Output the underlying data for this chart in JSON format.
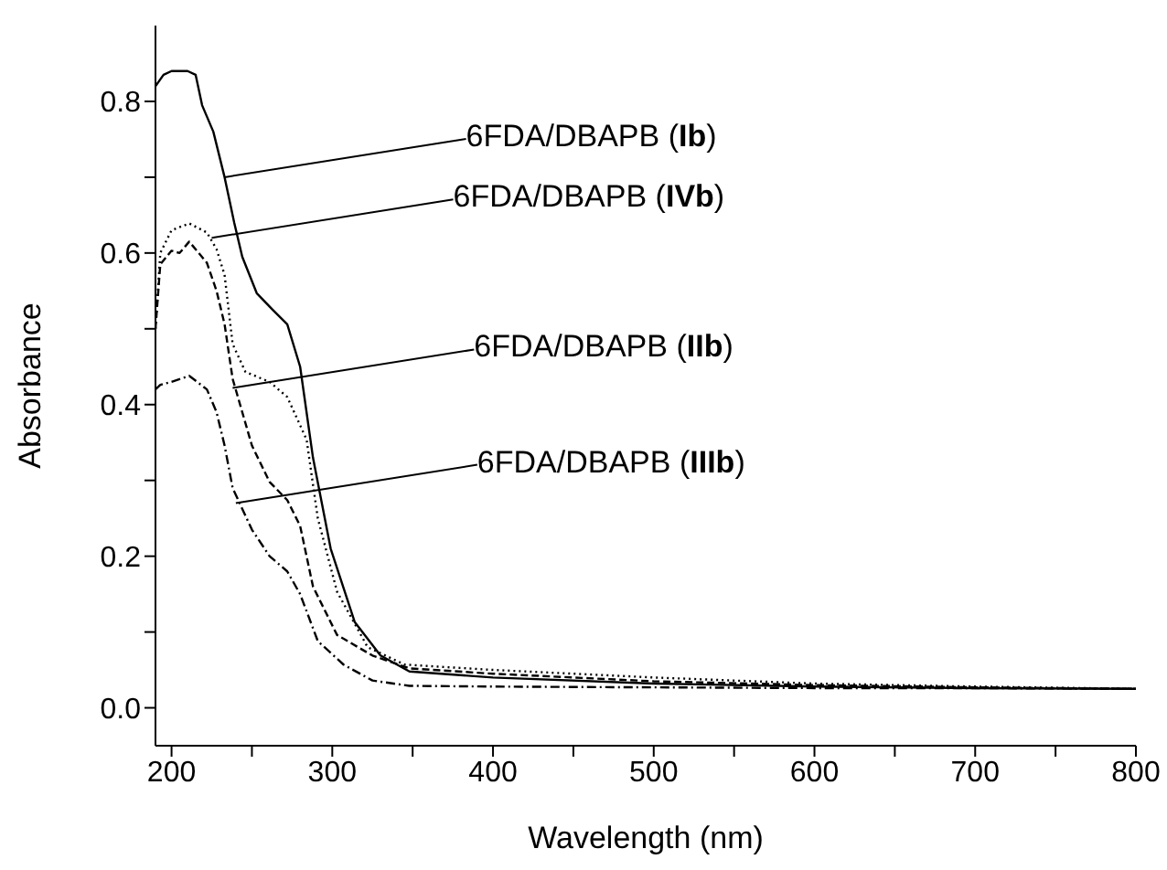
{
  "chart_data": {
    "type": "line",
    "xlabel": "Wavelength (nm)",
    "ylabel": "Absorbance",
    "xlim": [
      190,
      800
    ],
    "ylim": [
      -0.05,
      0.9
    ],
    "xticks": [
      200,
      {
        "value": 250,
        "label": null
      },
      300,
      {
        "value": 350,
        "label": null
      },
      400,
      {
        "value": 450,
        "label": null
      },
      500,
      {
        "value": 550,
        "label": null
      },
      600,
      {
        "value": 650,
        "label": null
      },
      700,
      {
        "value": 750,
        "label": null
      },
      800
    ],
    "yticks": [
      {
        "value": 0,
        "label": "0.0"
      },
      {
        "value": 0.1,
        "label": null
      },
      {
        "value": 0.2,
        "label": "0.2"
      },
      {
        "value": 0.3,
        "label": null
      },
      {
        "value": 0.4,
        "label": "0.4"
      },
      {
        "value": 0.5,
        "label": null
      },
      {
        "value": 0.6,
        "label": "0.6"
      },
      {
        "value": 0.7,
        "label": null
      },
      {
        "value": 0.8,
        "label": "0.8"
      }
    ],
    "marker": "none",
    "series": [
      {
        "color": "#000000",
        "line_style": "solid",
        "x": [
          190,
          195,
          200,
          210,
          215,
          219,
          226,
          233,
          239,
          244,
          253,
          263,
          272,
          280,
          288,
          299,
          314,
          330,
          348,
          400,
          500,
          600,
          700,
          800
        ],
        "values": [
          0.82,
          0.835,
          0.84,
          0.84,
          0.835,
          0.795,
          0.76,
          0.7,
          0.64,
          0.595,
          0.547,
          0.525,
          0.506,
          0.45,
          0.33,
          0.21,
          0.113,
          0.069,
          0.048,
          0.04,
          0.032,
          0.028,
          0.026,
          0.025
        ]
      },
      {
        "color": "#000000",
        "line_style": "dotted",
        "x": [
          190,
          193,
          200,
          211,
          222,
          228,
          233,
          238,
          246,
          261,
          272,
          284,
          291,
          303,
          322,
          345,
          400,
          500,
          600,
          700,
          800
        ],
        "values": [
          0.5,
          0.6,
          0.63,
          0.639,
          0.627,
          0.605,
          0.571,
          0.48,
          0.443,
          0.43,
          0.41,
          0.354,
          0.25,
          0.153,
          0.08,
          0.057,
          0.05,
          0.04,
          0.032,
          0.028,
          0.025
        ]
      },
      {
        "color": "#000000",
        "line_style": "dashed",
        "x": [
          190,
          193,
          200,
          205,
          211,
          222,
          228,
          233,
          238,
          250,
          261,
          272,
          280,
          288,
          303,
          325,
          348,
          400,
          500,
          600,
          700,
          800
        ],
        "values": [
          0.5,
          0.585,
          0.603,
          0.6,
          0.615,
          0.587,
          0.55,
          0.506,
          0.434,
          0.346,
          0.298,
          0.274,
          0.24,
          0.16,
          0.096,
          0.069,
          0.052,
          0.045,
          0.035,
          0.03,
          0.027,
          0.025
        ]
      },
      {
        "color": "#000000",
        "line_style": "dashdot",
        "x": [
          190,
          193,
          200,
          211,
          222,
          228,
          233,
          238,
          250,
          261,
          272,
          280,
          291,
          307,
          325,
          348,
          400,
          500,
          600,
          700,
          800
        ],
        "values": [
          0.42,
          0.426,
          0.43,
          0.438,
          0.42,
          0.39,
          0.346,
          0.29,
          0.235,
          0.2,
          0.18,
          0.15,
          0.088,
          0.057,
          0.036,
          0.029,
          0.028,
          0.027,
          0.026,
          0.026,
          0.025
        ]
      }
    ],
    "annotations": [
      {
        "text": "6FDA/DBAPB (Ib)",
        "x": 233,
        "y": 0.7
      },
      {
        "text": "6FDA/DBAPB (IVb)",
        "x": 225,
        "y": 0.62
      },
      {
        "text": "6FDA/DBAPB (IIb)",
        "x": 238,
        "y": 0.422
      },
      {
        "text": "6FDA/DBAPB (IIIb)",
        "x": 240,
        "y": 0.27
      }
    ]
  }
}
